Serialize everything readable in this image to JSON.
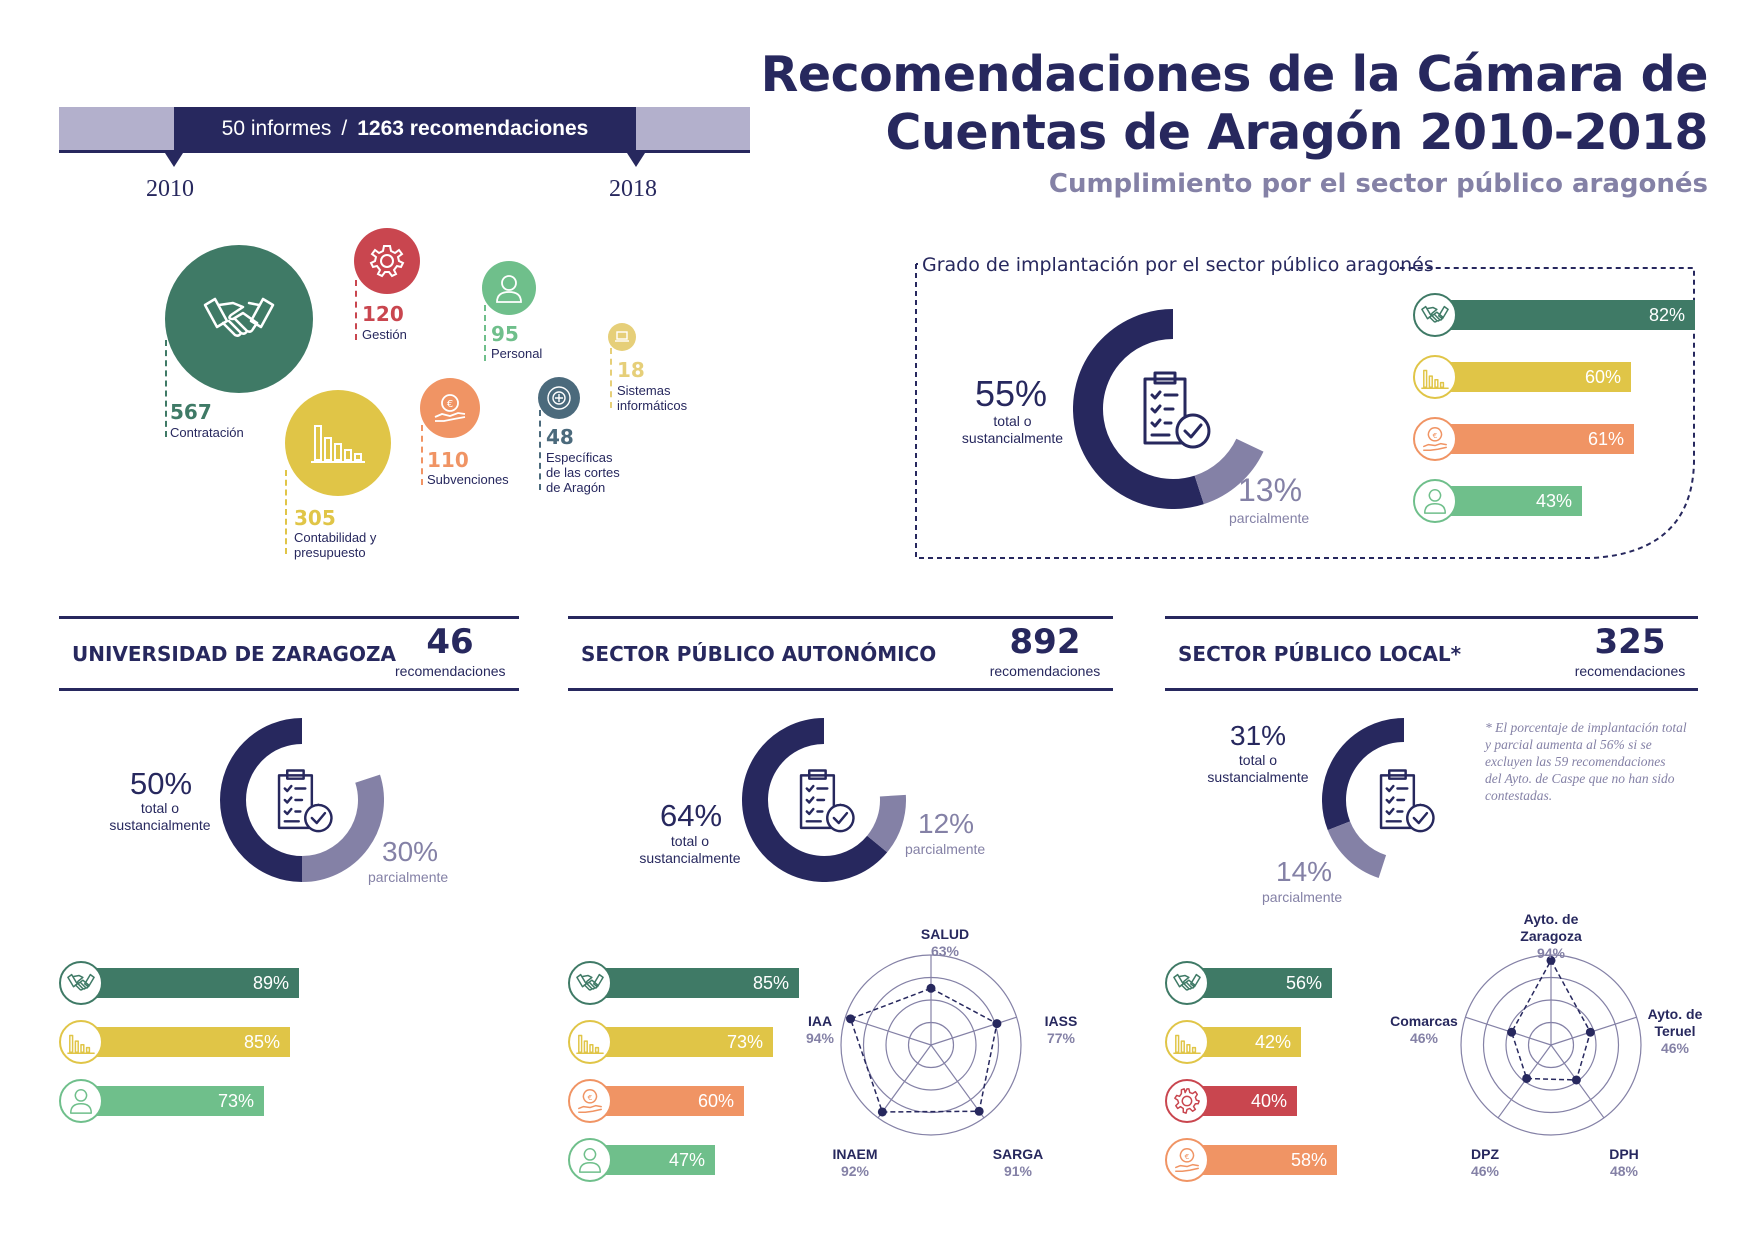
{
  "header": {
    "title_line1": "Recomendaciones de la Cámara de",
    "title_line2": "Cuentas de Aragón 2010-2018",
    "subtitle": "Cumplimiento por el sector público aragonés"
  },
  "timeline": {
    "informes": "50 informes",
    "separator": "/",
    "recomendaciones": "1263 recomendaciones",
    "year_start": "2010",
    "year_end": "2018"
  },
  "categories": {
    "contratacion": {
      "value": "567",
      "label": "Contratación",
      "color": "#3f7a66"
    },
    "gestion": {
      "value": "120",
      "label": "Gestión",
      "color": "#c9464f"
    },
    "personal": {
      "value": "95",
      "label": "Personal",
      "color": "#6fbf8b"
    },
    "sistemas": {
      "value": "18",
      "label_1": "Sistemas",
      "label_2": "informáticos",
      "color": "#e6cf79"
    },
    "contabilidad": {
      "value": "305",
      "label_1": "Contabilidad y",
      "label_2": "presupuesto",
      "color": "#e0c547"
    },
    "subvenciones": {
      "value": "110",
      "label": "Subvenciones",
      "color": "#f09464"
    },
    "especificas": {
      "value": "48",
      "label_1": "Específicas",
      "label_2": "de las cortes",
      "label_3": "de Aragón",
      "color": "#4b6a7c"
    }
  },
  "grado": {
    "title": "Grado de implantación por el sector público aragonés",
    "total_pct": "55%",
    "total_lbl_1": "total o",
    "total_lbl_2": "sustancialmente",
    "partial_pct": "13%",
    "partial_lbl": "parcialmente",
    "bars": [
      {
        "icon": "handshake-icon",
        "value": "82%",
        "fraction": 0.82,
        "color": "#3f7a66"
      },
      {
        "icon": "bar-chart-icon",
        "value": "60%",
        "fraction": 0.6,
        "color": "#e0c547"
      },
      {
        "icon": "euro-hand-icon",
        "value": "61%",
        "fraction": 0.61,
        "color": "#f09464"
      },
      {
        "icon": "person-icon",
        "value": "43%",
        "fraction": 0.43,
        "color": "#6fbf8b"
      }
    ]
  },
  "universidad": {
    "title": "UNIVERSIDAD DE ZARAGOZA",
    "count": "46",
    "count_lbl": "recomendaciones",
    "total_pct": "50%",
    "total_lbl_1": "total o",
    "total_lbl_2": "sustancialmente",
    "partial_pct": "30%",
    "partial_lbl": "parcialmente",
    "bars": [
      {
        "icon": "handshake-icon",
        "value": "89%",
        "color": "#3f7a66"
      },
      {
        "icon": "bar-chart-icon",
        "value": "85%",
        "color": "#e0c547"
      },
      {
        "icon": "person-icon",
        "value": "73%",
        "color": "#6fbf8b"
      }
    ]
  },
  "autonomico": {
    "title": "SECTOR PÚBLICO AUTONÓMICO",
    "count": "892",
    "count_lbl": "recomendaciones",
    "total_pct": "64%",
    "total_lbl_1": "total o",
    "total_lbl_2": "sustancialmente",
    "partial_pct": "12%",
    "partial_lbl": "parcialmente",
    "bars": [
      {
        "icon": "handshake-icon",
        "value": "85%",
        "color": "#3f7a66"
      },
      {
        "icon": "bar-chart-icon",
        "value": "73%",
        "color": "#e0c547"
      },
      {
        "icon": "euro-hand-icon",
        "value": "60%",
        "color": "#f09464"
      },
      {
        "icon": "person-icon",
        "value": "47%",
        "color": "#6fbf8b"
      }
    ],
    "radar": [
      {
        "name": "SALUD",
        "value": "63%"
      },
      {
        "name": "IASS",
        "value": "77%"
      },
      {
        "name": "SARGA",
        "value": "91%"
      },
      {
        "name": "INAEM",
        "value": "92%"
      },
      {
        "name": "IAA",
        "value": "94%"
      }
    ]
  },
  "local": {
    "title": "SECTOR PÚBLICO LOCAL*",
    "count": "325",
    "count_lbl": "recomendaciones",
    "total_pct": "31%",
    "total_lbl_1": "total o",
    "total_lbl_2": "sustancialmente",
    "partial_pct": "14%",
    "partial_lbl": "parcialmente",
    "note_1": "* El porcentaje de implantación total",
    "note_2": "y parcial aumenta al 56% si se",
    "note_3": "excluyen las 59 recomendaciones",
    "note_4": "del Ayto. de Caspe que no han sido",
    "note_5": "contestadas.",
    "bars": [
      {
        "icon": "handshake-icon",
        "value": "56%",
        "color": "#3f7a66"
      },
      {
        "icon": "bar-chart-icon",
        "value": "42%",
        "color": "#e0c547"
      },
      {
        "icon": "gear-icon",
        "value": "40%",
        "color": "#c9464f"
      },
      {
        "icon": "euro-hand-icon",
        "value": "58%",
        "color": "#f09464"
      }
    ],
    "radar": [
      {
        "name_1": "Ayto. de",
        "name_2": "Zaragoza",
        "value": "94%"
      },
      {
        "name_1": "Ayto. de",
        "name_2": "Teruel",
        "value": "46%"
      },
      {
        "name": "DPH",
        "value": "48%"
      },
      {
        "name": "DPZ",
        "value": "46%"
      },
      {
        "name": "Comarcas",
        "value": "46%"
      }
    ]
  }
}
